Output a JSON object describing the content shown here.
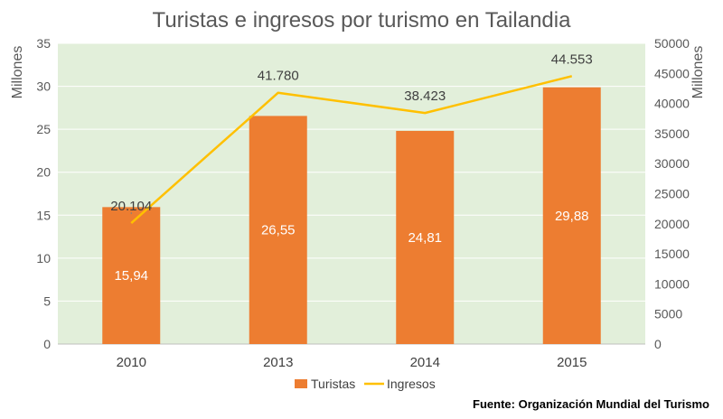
{
  "chart_data": {
    "type": "bar",
    "title": "Turistas e ingresos por turismo en Tailandia",
    "categories": [
      "2010",
      "2013",
      "2014",
      "2015"
    ],
    "series": [
      {
        "name": "Turistas",
        "type": "bar",
        "axis": "left",
        "values": [
          15.94,
          26.55,
          24.81,
          29.88
        ],
        "labels": [
          "15,94",
          "26,55",
          "24,81",
          "29,88"
        ],
        "color": "#ED7D31"
      },
      {
        "name": "Ingresos",
        "type": "line",
        "axis": "right",
        "values": [
          20104,
          41780,
          38423,
          44553
        ],
        "labels": [
          "20.104",
          "41.780",
          "38.423",
          "44.553"
        ],
        "color": "#FFC000"
      }
    ],
    "y_left": {
      "label": "Millones",
      "min": 0,
      "max": 35,
      "ticks": [
        "0",
        "5",
        "10",
        "15",
        "20",
        "25",
        "30",
        "35"
      ]
    },
    "y_right": {
      "label": "Millones",
      "min": 0,
      "max": 50000,
      "ticks": [
        "0",
        "5000",
        "10000",
        "15000",
        "20000",
        "25000",
        "30000",
        "35000",
        "40000",
        "45000",
        "50000"
      ]
    },
    "grid": true,
    "plot_background": "#E2EFDA",
    "legend_position": "bottom"
  },
  "source": "Fuente: Organización Mundial del Turismo"
}
